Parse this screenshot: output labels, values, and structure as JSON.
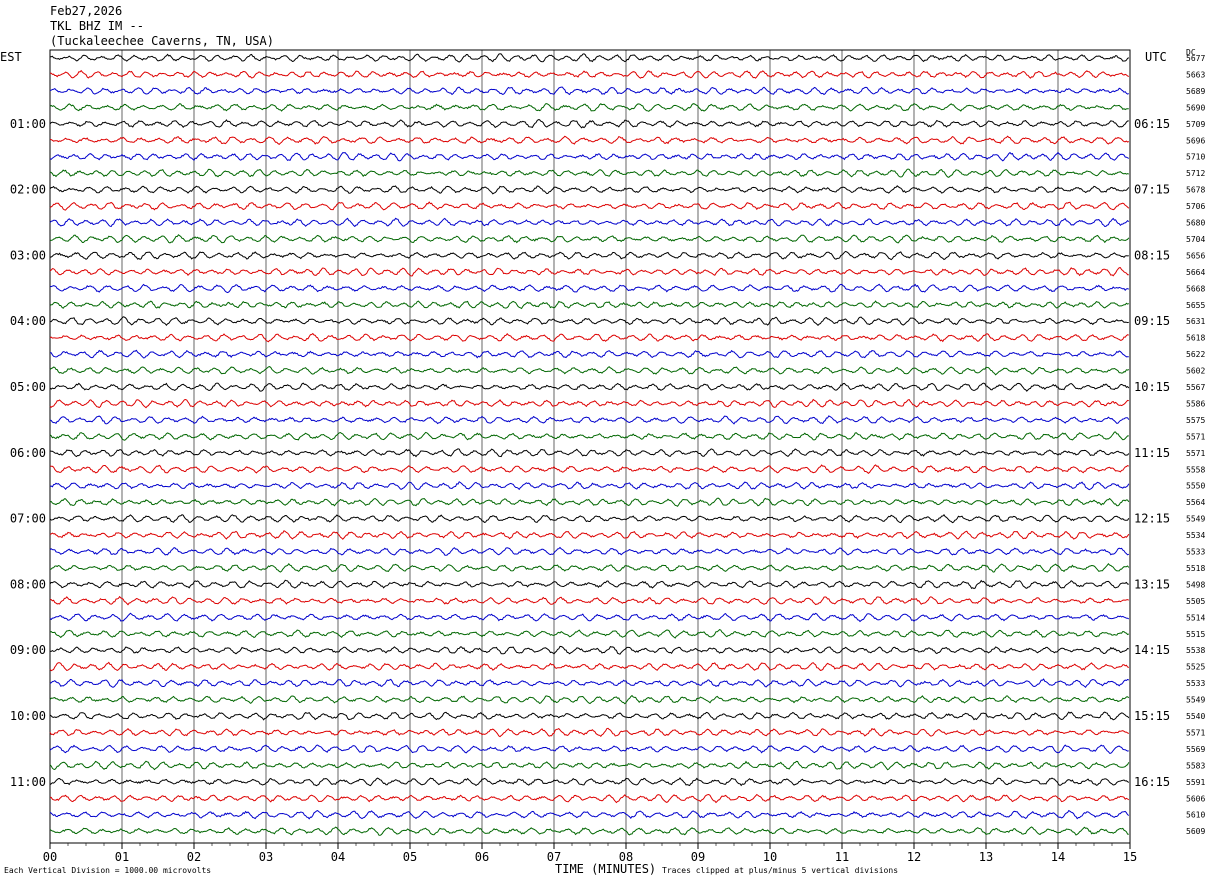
{
  "header": {
    "date": "Feb27,2026",
    "station": "TKL BHZ IM --",
    "location": "(Tuckaleechee Caverns, TN, USA)"
  },
  "left_timezone": "EST",
  "right_timezone": "UTC",
  "dc_header": "DC",
  "footer": {
    "scale_note": "Each Vertical Division = 1000.00 microvolts",
    "clip_note": "Traces clipped at plus/minus 5 vertical divisions"
  },
  "chart_data": {
    "type": "line",
    "xlabel": "TIME (MINUTES)",
    "xlim": [
      0,
      15
    ],
    "x_ticks": [
      "00",
      "01",
      "02",
      "03",
      "04",
      "05",
      "06",
      "07",
      "08",
      "09",
      "10",
      "11",
      "12",
      "13",
      "14",
      "15"
    ],
    "trace_colors": [
      "#000000",
      "#dd0000",
      "#0000cc",
      "#006600"
    ],
    "left_hour_labels": [
      "01:00",
      "02:00",
      "03:00",
      "04:00",
      "05:00",
      "06:00",
      "07:00",
      "08:00",
      "09:00",
      "10:00",
      "11:00"
    ],
    "right_hour_labels": [
      "06:15",
      "07:15",
      "08:15",
      "09:15",
      "10:15",
      "11:15",
      "12:15",
      "13:15",
      "14:15",
      "15:15",
      "16:15"
    ],
    "dc_offsets": [
      5677,
      5663,
      5689,
      5690,
      5709,
      5696,
      5710,
      5712,
      5678,
      5706,
      5680,
      5704,
      5656,
      5664,
      5668,
      5655,
      5631,
      5618,
      5622,
      5602,
      5567,
      5586,
      5575,
      5571,
      5571,
      5558,
      5550,
      5564,
      5549,
      5534,
      5533,
      5518,
      5498,
      5505,
      5514,
      5515,
      5538,
      5525,
      5533,
      5549,
      5540,
      5571,
      5569,
      5583,
      5591,
      5606,
      5610,
      5609
    ]
  }
}
